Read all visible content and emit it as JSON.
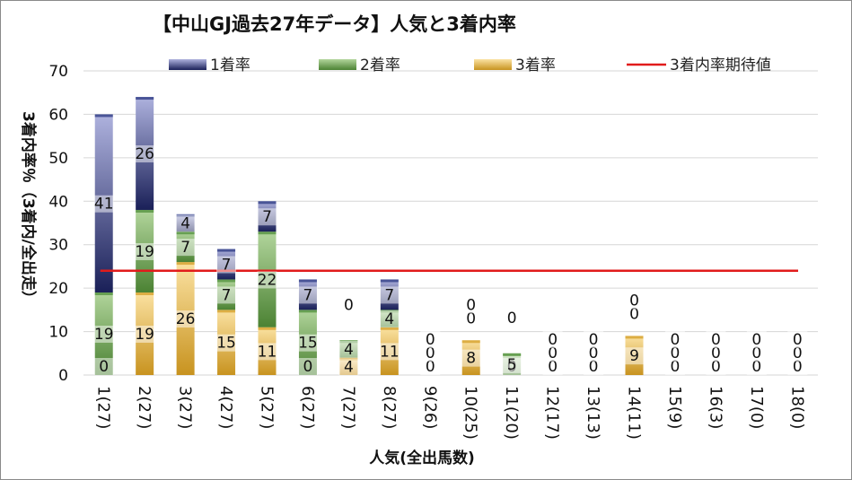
{
  "chart_data": {
    "type": "bar",
    "stacked": true,
    "title": "【中山GJ過去27年データ】人気と3着内率",
    "xlabel": "人気(全出馬数)",
    "ylabel": "3着内率％（3着内/全出走）",
    "ylim": [
      0,
      70
    ],
    "yticks": [
      0,
      10,
      20,
      30,
      40,
      50,
      60,
      70
    ],
    "grid": true,
    "legend_position": "top",
    "categories": [
      "1(27)",
      "2(27)",
      "3(27)",
      "4(27)",
      "5(27)",
      "6(27)",
      "7(27)",
      "8(27)",
      "9(26)",
      "10(25)",
      "11(20)",
      "12(17)",
      "13(13)",
      "14(11)",
      "15(9)",
      "16(3)",
      "17(0)",
      "18(0)"
    ],
    "series": [
      {
        "name": "3着率",
        "color": "#d9a83a",
        "values": [
          0,
          19,
          26,
          15,
          11,
          0,
          4,
          11,
          0,
          8,
          0,
          0,
          0,
          9,
          0,
          0,
          0,
          0
        ]
      },
      {
        "name": "2着率",
        "color": "#5f9a4a",
        "values": [
          19,
          19,
          7,
          7,
          22,
          15,
          4,
          4,
          0,
          0,
          5,
          0,
          0,
          0,
          0,
          0,
          0,
          0
        ]
      },
      {
        "name": "1着率",
        "color": "#3e4a8f",
        "values": [
          41,
          26,
          4,
          7,
          7,
          7,
          0,
          7,
          0,
          0,
          0,
          0,
          0,
          0,
          0,
          0,
          0,
          0
        ]
      }
    ],
    "reference_line": {
      "name": "3着内率期待値",
      "color": "#e11b1b",
      "value": 24
    }
  }
}
